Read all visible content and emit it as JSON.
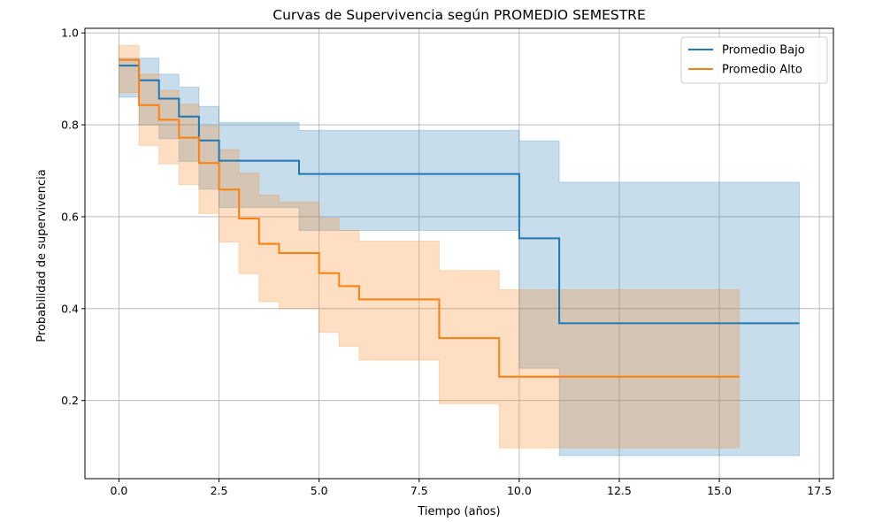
{
  "chart_data": {
    "type": "line",
    "subtype": "step-survival-with-confidence-bands",
    "title": "Curvas de Supervivencia según PROMEDIO SEMESTRE",
    "xlabel": "Tiempo (años)",
    "ylabel": "Probabilidad de supervivencia",
    "xlim": [
      -0.85,
      17.85
    ],
    "ylim": [
      0.03,
      1.01
    ],
    "xticks": [
      0.0,
      2.5,
      5.0,
      7.5,
      10.0,
      12.5,
      15.0,
      17.5
    ],
    "xtick_labels": [
      "0.0",
      "2.5",
      "5.0",
      "7.5",
      "10.0",
      "12.5",
      "15.0",
      "17.5"
    ],
    "yticks": [
      0.2,
      0.4,
      0.6,
      0.8,
      1.0
    ],
    "ytick_labels": [
      "0.2",
      "0.4",
      "0.6",
      "0.8",
      "1.0"
    ],
    "grid": true,
    "legend_position": "top-right",
    "series": [
      {
        "name": "Promedio Bajo",
        "color": "#1f77b4",
        "band_color": "#1f77b4",
        "x": [
          0.0,
          0.5,
          1.0,
          1.5,
          2.0,
          2.5,
          4.5,
          10.0,
          11.0,
          17.0
        ],
        "y": [
          0.929,
          0.897,
          0.857,
          0.818,
          0.766,
          0.722,
          0.693,
          0.553,
          0.368,
          0.368
        ],
        "lower": [
          0.86,
          0.8,
          0.77,
          0.72,
          0.66,
          0.62,
          0.57,
          0.27,
          0.08,
          0.08
        ],
        "upper": [
          0.945,
          0.945,
          0.91,
          0.882,
          0.84,
          0.805,
          0.788,
          0.765,
          0.675,
          0.675
        ]
      },
      {
        "name": "Promedio Alto",
        "color": "#ff7f0e",
        "band_color": "#ff7f0e",
        "x": [
          0.0,
          0.5,
          1.0,
          1.5,
          2.0,
          2.5,
          3.0,
          3.5,
          4.0,
          5.0,
          5.5,
          6.0,
          8.0,
          9.5,
          15.5
        ],
        "y": [
          0.941,
          0.843,
          0.811,
          0.772,
          0.717,
          0.659,
          0.596,
          0.541,
          0.521,
          0.477,
          0.449,
          0.42,
          0.336,
          0.252,
          0.252
        ],
        "lower": [
          0.87,
          0.755,
          0.715,
          0.67,
          0.607,
          0.545,
          0.476,
          0.415,
          0.4,
          0.348,
          0.318,
          0.288,
          0.193,
          0.097,
          0.097
        ],
        "upper": [
          0.973,
          0.91,
          0.875,
          0.845,
          0.797,
          0.746,
          0.695,
          0.647,
          0.632,
          0.597,
          0.57,
          0.547,
          0.483,
          0.441,
          0.441
        ]
      }
    ]
  }
}
